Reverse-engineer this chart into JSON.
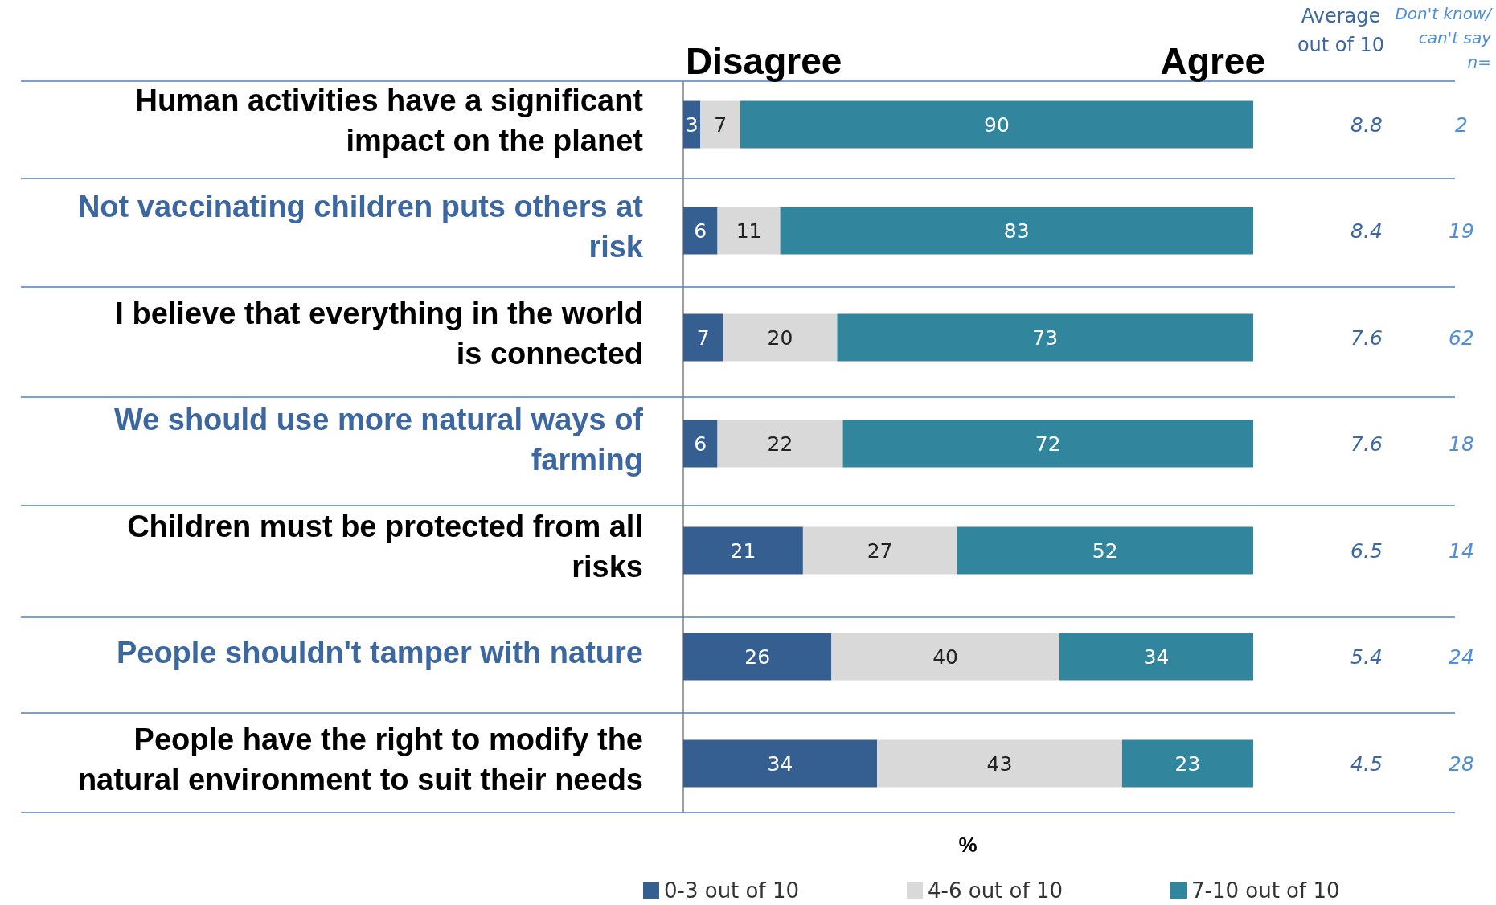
{
  "chart_data": {
    "type": "bar",
    "orientation": "horizontal",
    "stacked": true,
    "data_labels": true,
    "legend": "bottom",
    "xlabel": "%",
    "categories": [
      "Human activities have a significant impact on the planet",
      "Not vaccinating children puts others at risk",
      "I believe that everything in the world is connected",
      "We should use more natural ways of farming",
      "Children must be protected from all risks",
      "People shouldn't tamper with nature",
      "People have the right to modify the natural environment to suit their needs"
    ],
    "series": [
      {
        "name": "0-3 out of 10",
        "color": "#365f91",
        "values": [
          3,
          6,
          7,
          6,
          21,
          26,
          34
        ]
      },
      {
        "name": "4-6 out of 10",
        "color": "#d9d9d9",
        "values": [
          7,
          11,
          20,
          22,
          27,
          40,
          43
        ]
      },
      {
        "name": "7-10 out of 10",
        "color": "#31859c",
        "values": [
          90,
          83,
          73,
          72,
          52,
          34,
          23
        ]
      }
    ],
    "annotations": [
      "Disagree",
      "Agree",
      "Average out of 10",
      "Don't know/ can't say n=",
      "8.8",
      "8.4",
      "7.6",
      "7.6",
      "6.5",
      "5.4",
      "4.5",
      "2",
      "19",
      "62",
      "18",
      "14",
      "24",
      "28"
    ]
  }
}
